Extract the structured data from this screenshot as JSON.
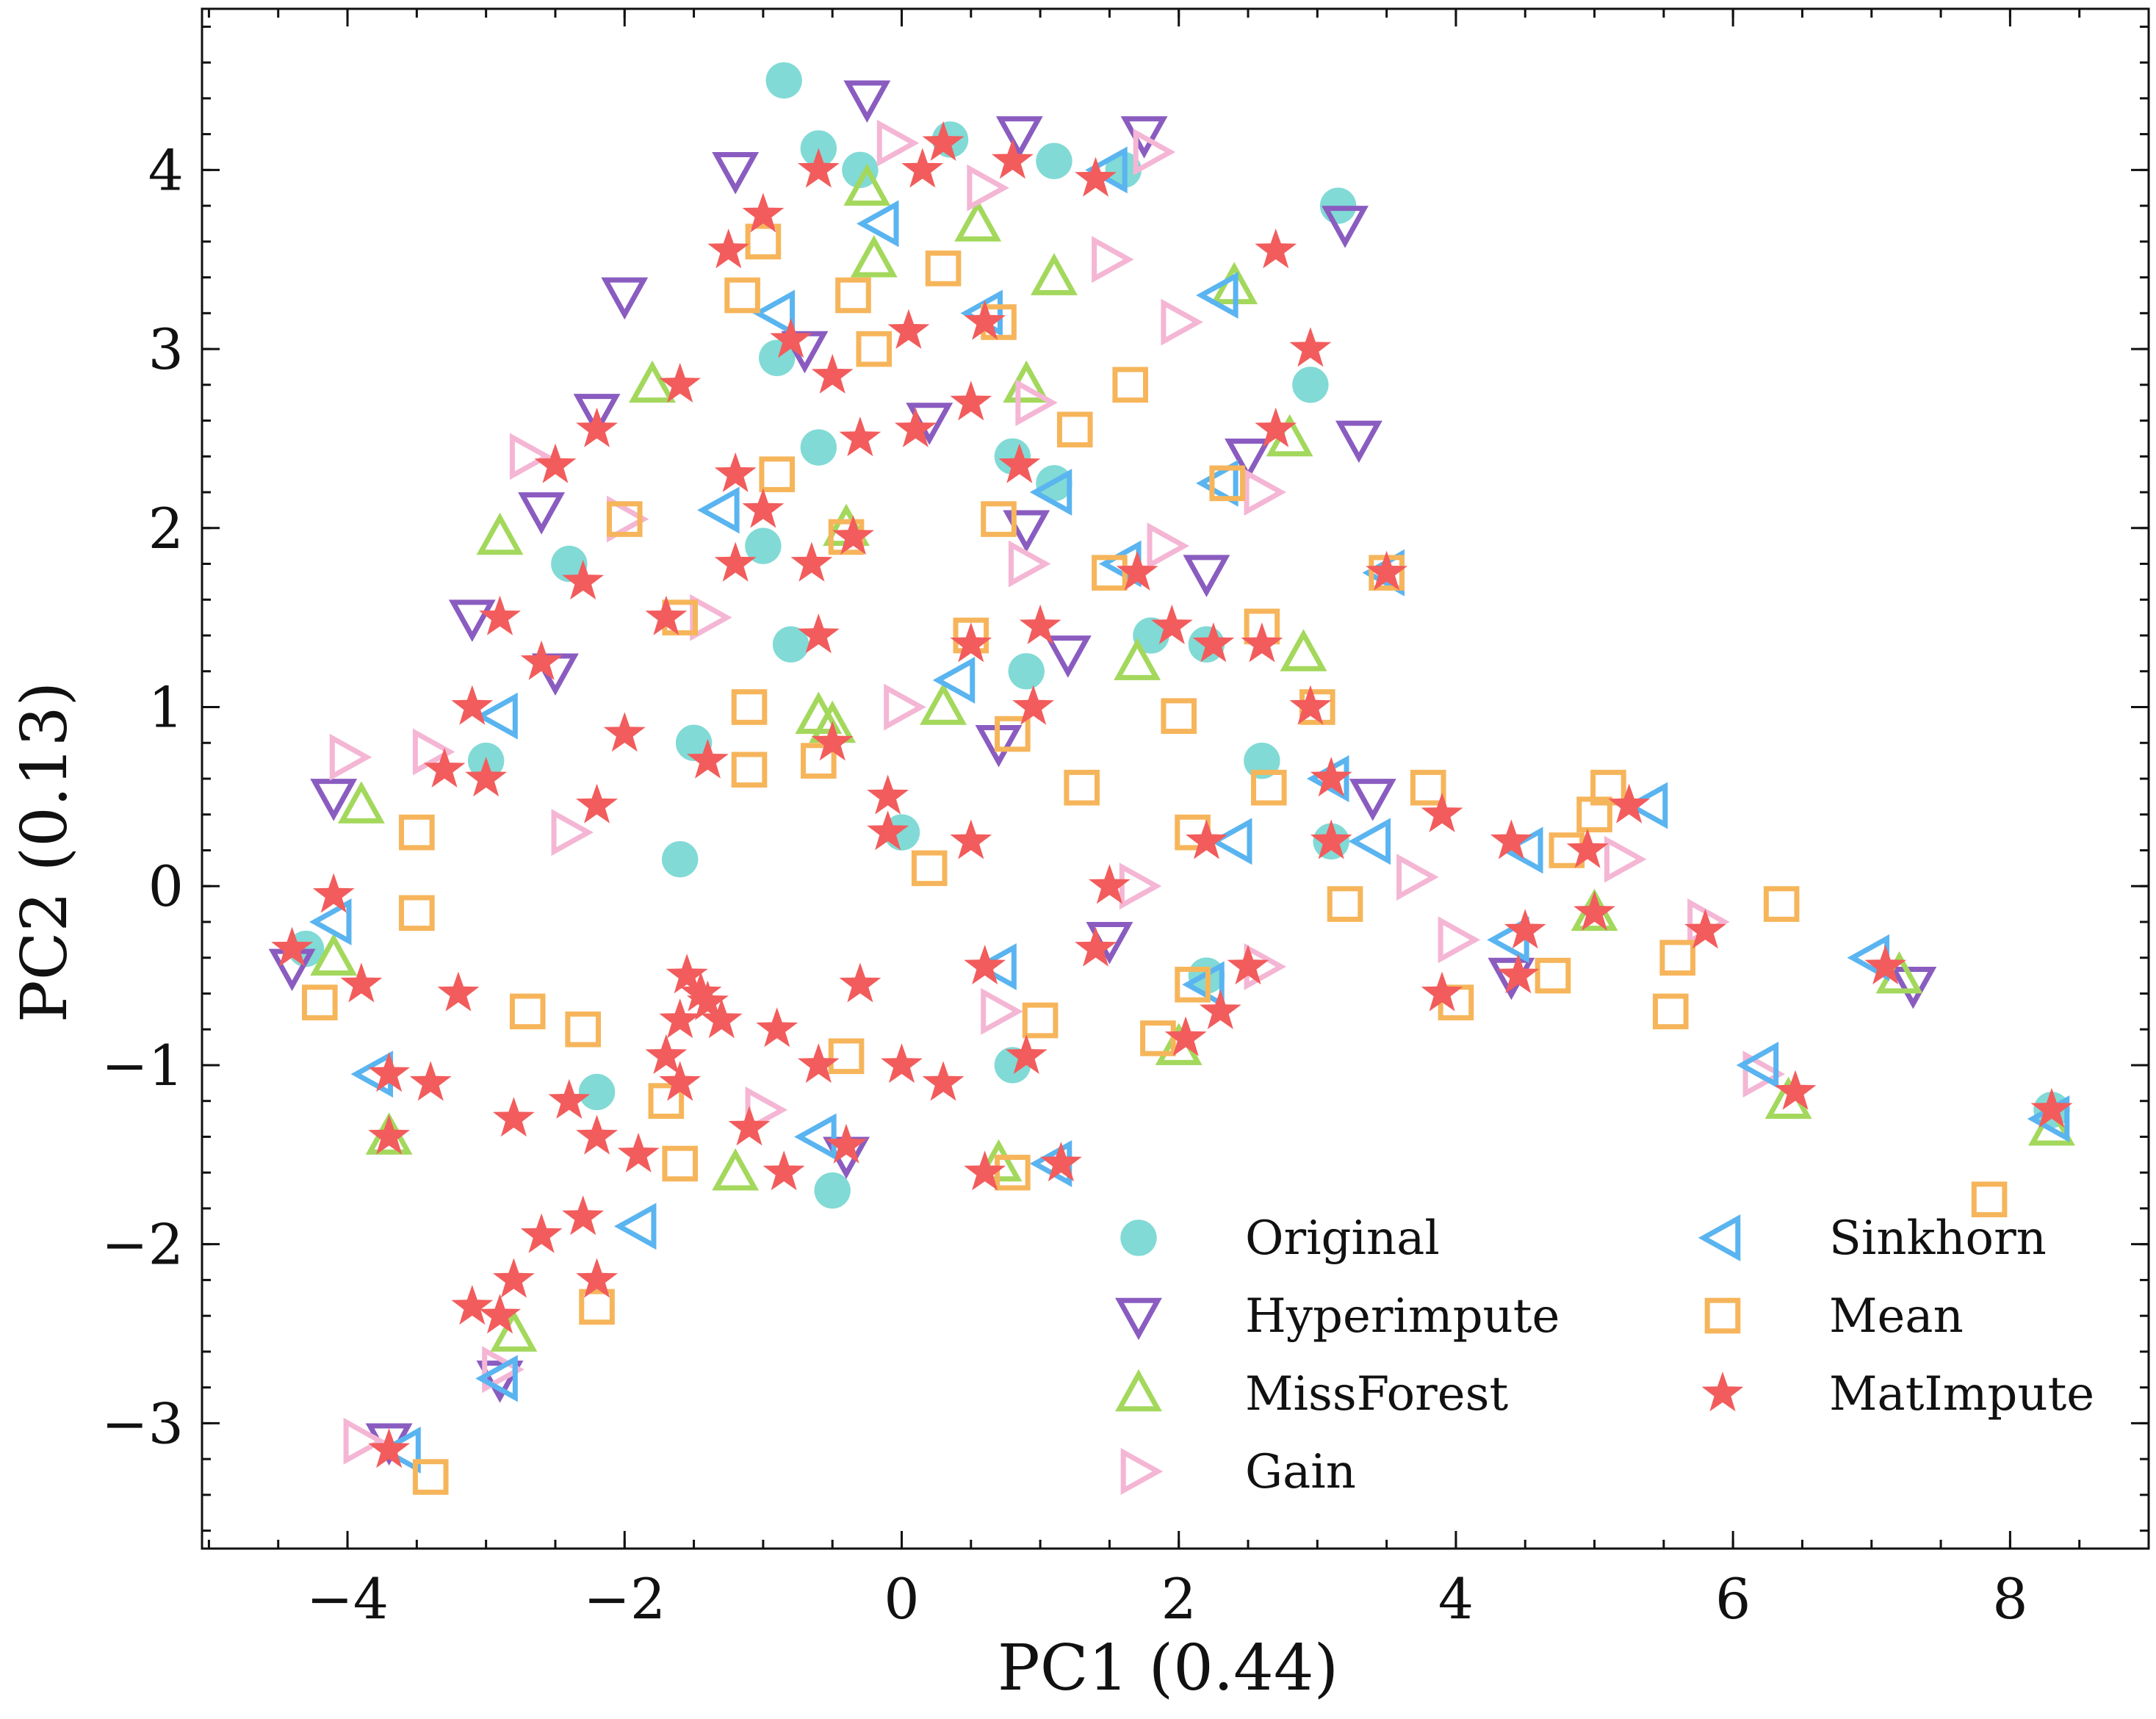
{
  "chart_data": {
    "type": "scatter",
    "xlabel": "PC1 (0.44)",
    "ylabel": "PC2 (0.13)",
    "xlim": [
      -5.05,
      9.0
    ],
    "ylim": [
      -3.7,
      4.9
    ],
    "xticks": [
      -4,
      -2,
      0,
      2,
      4,
      6,
      8
    ],
    "xtick_labels": [
      "−4",
      "−2",
      "0",
      "2",
      "4",
      "6",
      "8"
    ],
    "yticks": [
      -3,
      -2,
      -1,
      0,
      1,
      2,
      3,
      4
    ],
    "ytick_labels": [
      "−3",
      "−2",
      "−1",
      "0",
      "1",
      "2",
      "3",
      "4"
    ],
    "grid": false,
    "legend_position": "bottom-right",
    "legend_columns": 2,
    "series": [
      {
        "name": "Original",
        "marker": "circle",
        "color": "#7ad8d3",
        "points": [
          [
            -0.85,
            4.5
          ],
          [
            -0.6,
            4.12
          ],
          [
            0.35,
            4.17
          ],
          [
            1.1,
            4.05
          ],
          [
            1.6,
            4.0
          ],
          [
            3.15,
            3.8
          ],
          [
            -0.3,
            4.0
          ],
          [
            -2.4,
            1.8
          ],
          [
            -0.8,
            1.35
          ],
          [
            -1.5,
            0.8
          ],
          [
            -1.6,
            0.15
          ],
          [
            0.9,
            1.2
          ],
          [
            1.8,
            1.4
          ],
          [
            2.2,
            1.35
          ],
          [
            2.6,
            0.7
          ],
          [
            3.1,
            0.25
          ],
          [
            -2.2,
            -1.15
          ],
          [
            -0.5,
            -1.7
          ],
          [
            0.8,
            -1.0
          ],
          [
            2.2,
            -0.5
          ],
          [
            -4.3,
            -0.35
          ],
          [
            8.3,
            -1.25
          ],
          [
            -0.9,
            2.95
          ],
          [
            -0.6,
            2.45
          ],
          [
            0.8,
            2.4
          ],
          [
            1.1,
            2.25
          ],
          [
            -1.0,
            1.9
          ],
          [
            2.95,
            2.8
          ],
          [
            -3.0,
            0.7
          ],
          [
            0.0,
            0.3
          ]
        ]
      },
      {
        "name": "Hyperimpute",
        "marker": "triangle-down",
        "color": "#8a5cc0",
        "points": [
          [
            -0.25,
            4.4
          ],
          [
            0.85,
            4.2
          ],
          [
            1.75,
            4.2
          ],
          [
            3.2,
            3.7
          ],
          [
            -2.0,
            3.3
          ],
          [
            -1.2,
            4.0
          ],
          [
            -2.6,
            2.1
          ],
          [
            0.2,
            2.6
          ],
          [
            3.3,
            2.5
          ],
          [
            2.5,
            2.4
          ],
          [
            2.2,
            1.75
          ],
          [
            1.2,
            1.3
          ],
          [
            -3.1,
            1.5
          ],
          [
            -4.1,
            0.5
          ],
          [
            -2.5,
            1.2
          ],
          [
            0.7,
            0.8
          ],
          [
            3.4,
            0.5
          ],
          [
            4.4,
            -0.5
          ],
          [
            7.3,
            -0.55
          ],
          [
            -4.4,
            -0.45
          ],
          [
            -2.9,
            -2.75
          ],
          [
            -0.4,
            -1.5
          ],
          [
            1.5,
            -0.3
          ],
          [
            -3.7,
            -3.1
          ],
          [
            0.9,
            2.0
          ],
          [
            -0.7,
            3.0
          ],
          [
            -2.2,
            2.65
          ]
        ]
      },
      {
        "name": "MissForest",
        "marker": "triangle-up",
        "color": "#a3d85c",
        "points": [
          [
            -0.25,
            3.9
          ],
          [
            0.55,
            3.7
          ],
          [
            1.1,
            3.4
          ],
          [
            2.4,
            3.35
          ],
          [
            -0.2,
            3.5
          ],
          [
            -1.8,
            2.8
          ],
          [
            0.9,
            2.8
          ],
          [
            -2.9,
            1.95
          ],
          [
            -3.9,
            0.45
          ],
          [
            -0.6,
            0.95
          ],
          [
            0.3,
            1.0
          ],
          [
            2.8,
            2.5
          ],
          [
            1.7,
            1.25
          ],
          [
            2.9,
            1.3
          ],
          [
            -0.5,
            0.9
          ],
          [
            -3.7,
            -1.4
          ],
          [
            -2.8,
            -2.5
          ],
          [
            6.4,
            -1.2
          ],
          [
            7.2,
            -0.5
          ],
          [
            8.3,
            -1.35
          ],
          [
            5.0,
            -0.15
          ],
          [
            2.0,
            -0.9
          ],
          [
            -1.2,
            -1.6
          ],
          [
            0.7,
            -1.55
          ],
          [
            -4.1,
            -0.4
          ],
          [
            -0.4,
            2.0
          ]
        ]
      },
      {
        "name": "Gain",
        "marker": "triangle-right",
        "color": "#f4b6d4",
        "points": [
          [
            -0.05,
            4.15
          ],
          [
            1.8,
            4.1
          ],
          [
            1.5,
            3.5
          ],
          [
            2.0,
            3.15
          ],
          [
            0.95,
            2.7
          ],
          [
            2.6,
            2.2
          ],
          [
            1.9,
            1.9
          ],
          [
            0.9,
            1.8
          ],
          [
            -4.0,
            0.72
          ],
          [
            -3.4,
            0.75
          ],
          [
            -2.0,
            2.05
          ],
          [
            -2.7,
            2.4
          ],
          [
            0.0,
            1.0
          ],
          [
            1.7,
            0.0
          ],
          [
            3.7,
            0.05
          ],
          [
            4.0,
            -0.3
          ],
          [
            5.2,
            0.15
          ],
          [
            5.8,
            -0.2
          ],
          [
            6.2,
            -1.05
          ],
          [
            -3.9,
            -3.1
          ],
          [
            -2.9,
            -2.7
          ],
          [
            -1.0,
            -1.25
          ],
          [
            0.7,
            -0.7
          ],
          [
            2.6,
            -0.45
          ],
          [
            -1.4,
            1.5
          ],
          [
            -2.4,
            0.3
          ],
          [
            0.6,
            3.9
          ]
        ]
      },
      {
        "name": "Sinkhorn",
        "marker": "triangle-left",
        "color": "#5ab4f0",
        "points": [
          [
            -0.15,
            3.7
          ],
          [
            1.5,
            4.0
          ],
          [
            2.3,
            3.3
          ],
          [
            -0.9,
            3.2
          ],
          [
            0.6,
            3.2
          ],
          [
            1.1,
            2.2
          ],
          [
            -1.3,
            2.1
          ],
          [
            2.3,
            2.25
          ],
          [
            3.5,
            1.75
          ],
          [
            1.6,
            1.8
          ],
          [
            0.4,
            1.15
          ],
          [
            -2.9,
            0.95
          ],
          [
            3.1,
            0.6
          ],
          [
            3.4,
            0.25
          ],
          [
            2.4,
            0.25
          ],
          [
            4.5,
            0.2
          ],
          [
            5.4,
            0.45
          ],
          [
            4.4,
            -0.3
          ],
          [
            6.2,
            -1.0
          ],
          [
            7.0,
            -0.4
          ],
          [
            8.3,
            -1.3
          ],
          [
            -4.1,
            -0.2
          ],
          [
            -3.8,
            -1.05
          ],
          [
            -2.9,
            -2.75
          ],
          [
            -3.6,
            -3.15
          ],
          [
            -0.6,
            -1.4
          ],
          [
            1.1,
            -1.55
          ],
          [
            2.2,
            -0.55
          ],
          [
            0.7,
            -0.45
          ],
          [
            -1.9,
            -1.9
          ]
        ]
      },
      {
        "name": "Mean",
        "marker": "square",
        "color": "#f6b55b",
        "points": [
          [
            -1.0,
            3.6
          ],
          [
            -0.35,
            3.3
          ],
          [
            0.3,
            3.45
          ],
          [
            1.65,
            2.8
          ],
          [
            1.25,
            2.55
          ],
          [
            -0.2,
            3.0
          ],
          [
            0.7,
            3.15
          ],
          [
            -1.15,
            3.3
          ],
          [
            1.5,
            1.75
          ],
          [
            2.35,
            2.25
          ],
          [
            0.7,
            2.05
          ],
          [
            -0.4,
            1.95
          ],
          [
            0.8,
            0.85
          ],
          [
            1.3,
            0.55
          ],
          [
            -1.1,
            0.65
          ],
          [
            -3.5,
            0.3
          ],
          [
            -3.5,
            -0.15
          ],
          [
            -4.2,
            -0.65
          ],
          [
            -2.7,
            -0.7
          ],
          [
            -2.3,
            -0.8
          ],
          [
            2.0,
            0.95
          ],
          [
            3.0,
            1.0
          ],
          [
            2.6,
            1.45
          ],
          [
            2.1,
            0.3
          ],
          [
            2.65,
            0.55
          ],
          [
            3.2,
            -0.1
          ],
          [
            3.8,
            0.55
          ],
          [
            2.1,
            -0.55
          ],
          [
            1.85,
            -0.85
          ],
          [
            4.0,
            -0.65
          ],
          [
            4.7,
            -0.5
          ],
          [
            5.0,
            0.4
          ],
          [
            4.8,
            0.2
          ],
          [
            5.1,
            0.55
          ],
          [
            5.6,
            -0.4
          ],
          [
            5.55,
            -0.7
          ],
          [
            6.35,
            -0.1
          ],
          [
            7.85,
            -1.75
          ],
          [
            -3.4,
            -3.3
          ],
          [
            -2.2,
            -2.35
          ],
          [
            -1.6,
            -1.55
          ],
          [
            0.8,
            -1.6
          ],
          [
            1.0,
            -0.75
          ],
          [
            -0.4,
            -0.95
          ],
          [
            -1.1,
            1.0
          ],
          [
            -1.6,
            1.5
          ],
          [
            -2.0,
            2.05
          ],
          [
            -0.9,
            2.3
          ],
          [
            0.2,
            0.1
          ],
          [
            -0.6,
            0.7
          ],
          [
            -1.7,
            -1.2
          ],
          [
            0.5,
            1.4
          ],
          [
            3.5,
            1.75
          ]
        ]
      },
      {
        "name": "MatImpute",
        "marker": "star",
        "color": "#f25c5c",
        "points": [
          [
            -0.6,
            4.0
          ],
          [
            0.3,
            4.15
          ],
          [
            0.8,
            4.05
          ],
          [
            1.4,
            3.95
          ],
          [
            0.15,
            4.0
          ],
          [
            -1.0,
            3.75
          ],
          [
            -1.25,
            3.55
          ],
          [
            2.7,
            3.55
          ],
          [
            2.95,
            3.0
          ],
          [
            0.05,
            3.1
          ],
          [
            0.6,
            3.15
          ],
          [
            -0.8,
            3.05
          ],
          [
            -0.5,
            2.85
          ],
          [
            -1.6,
            2.8
          ],
          [
            -2.2,
            2.55
          ],
          [
            -2.5,
            2.35
          ],
          [
            0.5,
            2.7
          ],
          [
            0.1,
            2.55
          ],
          [
            -0.3,
            2.5
          ],
          [
            -1.2,
            2.3
          ],
          [
            2.7,
            2.55
          ],
          [
            -1.0,
            2.1
          ],
          [
            -0.65,
            1.8
          ],
          [
            -0.35,
            1.95
          ],
          [
            0.85,
            2.35
          ],
          [
            -1.2,
            1.8
          ],
          [
            -1.7,
            1.5
          ],
          [
            -2.3,
            1.7
          ],
          [
            -2.6,
            1.25
          ],
          [
            -2.9,
            1.5
          ],
          [
            -3.1,
            1.0
          ],
          [
            1.7,
            1.75
          ],
          [
            3.5,
            1.75
          ],
          [
            1.95,
            1.45
          ],
          [
            2.25,
            1.35
          ],
          [
            2.6,
            1.35
          ],
          [
            2.95,
            1.0
          ],
          [
            0.5,
            1.35
          ],
          [
            0.95,
            1.0
          ],
          [
            1.0,
            1.45
          ],
          [
            -0.6,
            1.4
          ],
          [
            -2.0,
            0.85
          ],
          [
            -1.4,
            0.7
          ],
          [
            -2.2,
            0.45
          ],
          [
            -0.5,
            0.8
          ],
          [
            -0.1,
            0.5
          ],
          [
            -0.1,
            0.3
          ],
          [
            -3.0,
            0.6
          ],
          [
            -3.3,
            0.65
          ],
          [
            0.5,
            0.25
          ],
          [
            1.5,
            0.0
          ],
          [
            2.2,
            0.25
          ],
          [
            3.1,
            0.6
          ],
          [
            3.1,
            0.25
          ],
          [
            3.9,
            0.4
          ],
          [
            4.4,
            0.25
          ],
          [
            4.95,
            0.2
          ],
          [
            5.25,
            0.45
          ],
          [
            4.5,
            -0.25
          ],
          [
            5.0,
            -0.15
          ],
          [
            5.8,
            -0.25
          ],
          [
            4.45,
            -0.5
          ],
          [
            3.9,
            -0.6
          ],
          [
            6.45,
            -1.15
          ],
          [
            7.1,
            -0.45
          ],
          [
            8.3,
            -1.25
          ],
          [
            -4.1,
            -0.05
          ],
          [
            -4.4,
            -0.35
          ],
          [
            -3.9,
            -0.55
          ],
          [
            -3.2,
            -0.6
          ],
          [
            -3.7,
            -1.05
          ],
          [
            -3.4,
            -1.1
          ],
          [
            -3.7,
            -1.4
          ],
          [
            -2.8,
            -1.3
          ],
          [
            -2.4,
            -1.2
          ],
          [
            -2.2,
            -1.4
          ],
          [
            -1.9,
            -1.5
          ],
          [
            -1.6,
            -1.1
          ],
          [
            -1.4,
            -0.65
          ],
          [
            -1.55,
            -0.5
          ],
          [
            -1.3,
            -0.75
          ],
          [
            -0.9,
            -0.8
          ],
          [
            -0.6,
            -1.0
          ],
          [
            -0.3,
            -0.55
          ],
          [
            0.0,
            -1.0
          ],
          [
            0.3,
            -1.1
          ],
          [
            0.6,
            -0.45
          ],
          [
            0.6,
            -1.6
          ],
          [
            1.15,
            -1.55
          ],
          [
            2.5,
            -0.45
          ],
          [
            2.3,
            -0.7
          ],
          [
            2.05,
            -0.85
          ],
          [
            1.4,
            -0.35
          ],
          [
            -0.4,
            -1.45
          ],
          [
            -0.85,
            -1.6
          ],
          [
            -1.1,
            -1.35
          ],
          [
            -2.3,
            -1.85
          ],
          [
            -2.6,
            -1.95
          ],
          [
            -2.8,
            -2.2
          ],
          [
            -2.9,
            -2.4
          ],
          [
            -2.2,
            -2.2
          ],
          [
            -3.1,
            -2.35
          ],
          [
            -3.7,
            -3.15
          ],
          [
            0.9,
            -0.95
          ],
          [
            -1.7,
            -0.95
          ],
          [
            -1.45,
            -0.6
          ],
          [
            -1.6,
            -0.75
          ]
        ]
      }
    ]
  }
}
